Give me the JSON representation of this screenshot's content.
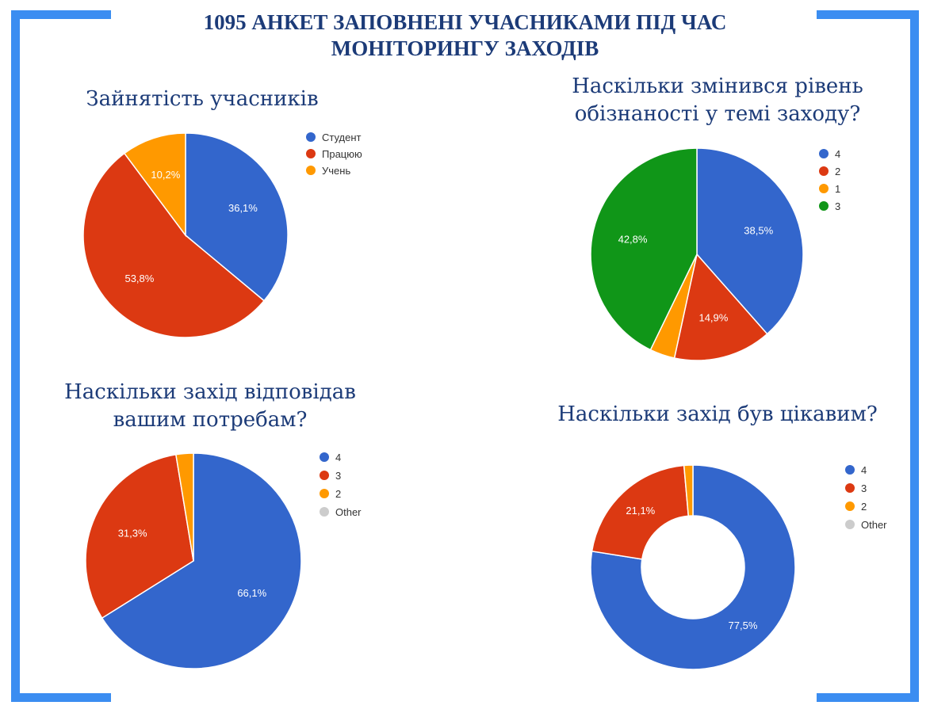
{
  "main_title": [
    "1095 АНКЕТ ЗАПОВНЕНІ УЧАСНИКАМИ ПІД ЧАС",
    "МОНІТОРИНГУ ЗАХОДІВ"
  ],
  "colors": {
    "frame": "#3b8df1",
    "title": "#1c3b78",
    "blue": "#3366cc",
    "red": "#dc3912",
    "orange": "#ff9900",
    "green": "#109618",
    "grey": "#cccccc"
  },
  "chart_data": [
    {
      "type": "pie",
      "title": [
        "Зайнятість учасників"
      ],
      "legend_position": "right",
      "slices": [
        {
          "label": "Студент",
          "value": 36.1,
          "display": "36,1%",
          "color": "#3366cc"
        },
        {
          "label": "Працюю",
          "value": 53.8,
          "display": "53,8%",
          "color": "#dc3912"
        },
        {
          "label": "Учень",
          "value": 10.2,
          "display": "10,2%",
          "color": "#ff9900"
        }
      ]
    },
    {
      "type": "pie",
      "title": [
        "Наскільки змінився рівень",
        "обізнаності у темі заходу?"
      ],
      "legend_position": "right",
      "slices": [
        {
          "label": "4",
          "value": 38.5,
          "display": "38,5%",
          "color": "#3366cc"
        },
        {
          "label": "2",
          "value": 14.9,
          "display": "14,9%",
          "color": "#dc3912"
        },
        {
          "label": "1",
          "value": 3.8,
          "display": "",
          "color": "#ff9900"
        },
        {
          "label": "3",
          "value": 42.8,
          "display": "42,8%",
          "color": "#109618"
        }
      ]
    },
    {
      "type": "pie",
      "title": [
        "Наскільки захід відповідав",
        "вашим потребам?"
      ],
      "legend_position": "right",
      "slices": [
        {
          "label": "4",
          "value": 66.1,
          "display": "66,1%",
          "color": "#3366cc"
        },
        {
          "label": "3",
          "value": 31.3,
          "display": "31,3%",
          "color": "#dc3912"
        },
        {
          "label": "2",
          "value": 2.6,
          "display": "",
          "color": "#ff9900"
        },
        {
          "label": "Other",
          "value": 0,
          "display": "",
          "color": "#cccccc"
        }
      ]
    },
    {
      "type": "pie",
      "donut": true,
      "title": [
        "Наскільки захід був цікавим?"
      ],
      "legend_position": "right",
      "slices": [
        {
          "label": "4",
          "value": 77.5,
          "display": "77,5%",
          "color": "#3366cc"
        },
        {
          "label": "3",
          "value": 21.1,
          "display": "21,1%",
          "color": "#dc3912"
        },
        {
          "label": "2",
          "value": 1.4,
          "display": "",
          "color": "#ff9900"
        },
        {
          "label": "Other",
          "value": 0,
          "display": "",
          "color": "#cccccc"
        }
      ]
    }
  ]
}
